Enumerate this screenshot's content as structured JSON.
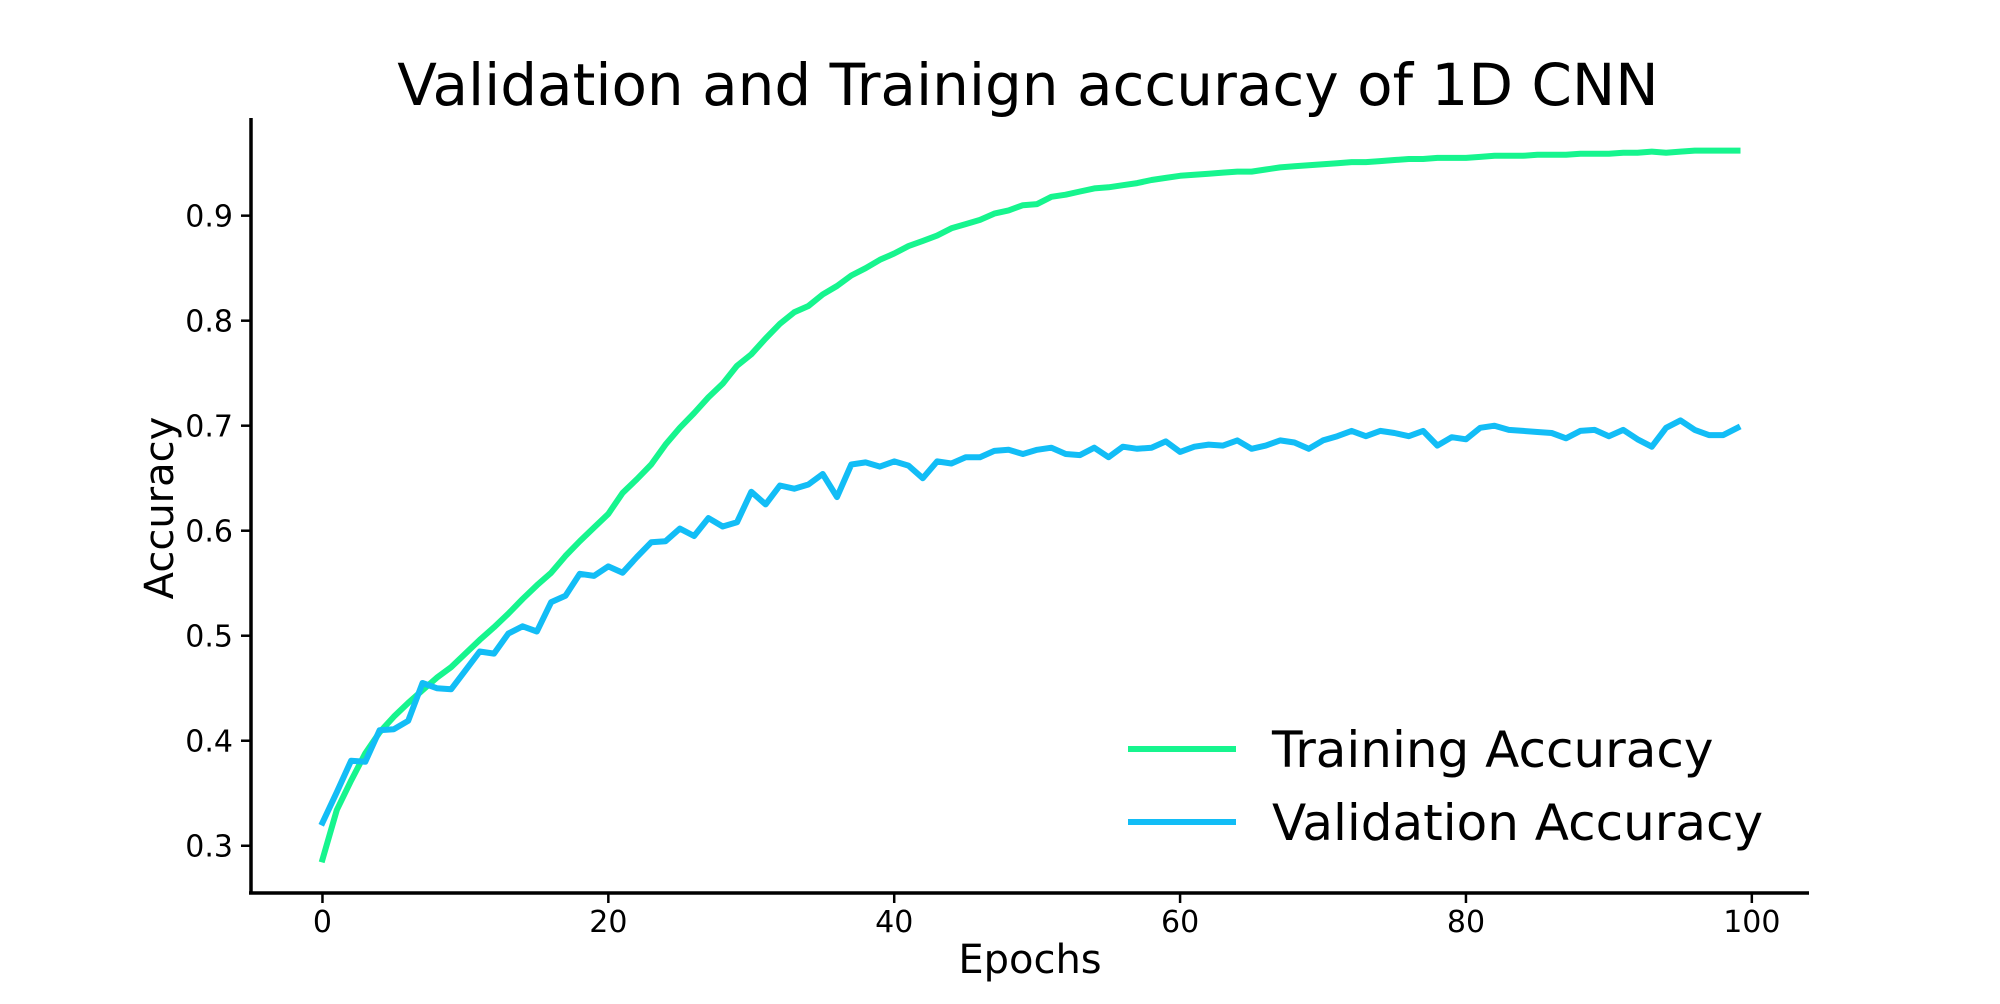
{
  "chart_data": {
    "type": "line",
    "title": "Validation and Trainign accuracy of 1D CNN",
    "xlabel": "Epochs",
    "ylabel": "Accuracy",
    "xlim": [
      -5,
      104
    ],
    "ylim": [
      0.255,
      0.993
    ],
    "xticks": [
      0,
      20,
      40,
      60,
      80,
      100
    ],
    "yticks": [
      0.3,
      0.4,
      0.5,
      0.6,
      0.7,
      0.8,
      0.9
    ],
    "grid": false,
    "legend_position": "lower-right",
    "x": [
      0,
      1,
      2,
      3,
      4,
      5,
      6,
      7,
      8,
      9,
      10,
      11,
      12,
      13,
      14,
      15,
      16,
      17,
      18,
      19,
      20,
      21,
      22,
      23,
      24,
      25,
      26,
      27,
      28,
      29,
      30,
      31,
      32,
      33,
      34,
      35,
      36,
      37,
      38,
      39,
      40,
      41,
      42,
      43,
      44,
      45,
      46,
      47,
      48,
      49,
      50,
      51,
      52,
      53,
      54,
      55,
      56,
      57,
      58,
      59,
      60,
      61,
      62,
      63,
      64,
      65,
      66,
      67,
      68,
      69,
      70,
      71,
      72,
      73,
      74,
      75,
      76,
      77,
      78,
      79,
      80,
      81,
      82,
      83,
      84,
      85,
      86,
      87,
      88,
      89,
      90,
      91,
      92,
      93,
      94,
      95,
      96,
      97,
      98,
      99
    ],
    "series": [
      {
        "name": "Training Accuracy",
        "color": "#16f58e",
        "values": [
          0.287,
          0.334,
          0.362,
          0.388,
          0.408,
          0.423,
          0.436,
          0.448,
          0.46,
          0.47,
          0.483,
          0.496,
          0.508,
          0.521,
          0.535,
          0.548,
          0.56,
          0.576,
          0.59,
          0.603,
          0.616,
          0.636,
          0.649,
          0.663,
          0.682,
          0.698,
          0.712,
          0.727,
          0.74,
          0.757,
          0.768,
          0.783,
          0.797,
          0.808,
          0.814,
          0.825,
          0.833,
          0.843,
          0.85,
          0.858,
          0.864,
          0.871,
          0.876,
          0.881,
          0.888,
          0.892,
          0.896,
          0.902,
          0.905,
          0.91,
          0.911,
          0.918,
          0.92,
          0.923,
          0.926,
          0.927,
          0.929,
          0.931,
          0.934,
          0.936,
          0.938,
          0.939,
          0.94,
          0.941,
          0.942,
          0.942,
          0.944,
          0.946,
          0.947,
          0.948,
          0.949,
          0.95,
          0.951,
          0.951,
          0.952,
          0.953,
          0.954,
          0.954,
          0.955,
          0.955,
          0.955,
          0.956,
          0.957,
          0.957,
          0.957,
          0.958,
          0.958,
          0.958,
          0.959,
          0.959,
          0.959,
          0.96,
          0.96,
          0.961,
          0.96,
          0.961,
          0.962,
          0.962,
          0.962,
          0.962
        ]
      },
      {
        "name": "Validation Accuracy",
        "color": "#12bdf6",
        "values": [
          0.322,
          0.351,
          0.381,
          0.38,
          0.41,
          0.411,
          0.419,
          0.455,
          0.45,
          0.449,
          0.467,
          0.485,
          0.483,
          0.502,
          0.509,
          0.504,
          0.532,
          0.538,
          0.559,
          0.557,
          0.566,
          0.56,
          0.575,
          0.589,
          0.59,
          0.602,
          0.595,
          0.612,
          0.604,
          0.608,
          0.637,
          0.625,
          0.643,
          0.64,
          0.644,
          0.654,
          0.632,
          0.663,
          0.665,
          0.661,
          0.666,
          0.662,
          0.65,
          0.666,
          0.664,
          0.67,
          0.67,
          0.676,
          0.677,
          0.673,
          0.677,
          0.679,
          0.673,
          0.672,
          0.679,
          0.67,
          0.68,
          0.678,
          0.679,
          0.685,
          0.675,
          0.68,
          0.682,
          0.681,
          0.686,
          0.678,
          0.681,
          0.686,
          0.684,
          0.678,
          0.686,
          0.69,
          0.695,
          0.69,
          0.695,
          0.693,
          0.69,
          0.695,
          0.681,
          0.689,
          0.687,
          0.698,
          0.7,
          0.696,
          0.695,
          0.694,
          0.693,
          0.688,
          0.695,
          0.696,
          0.69,
          0.696,
          0.687,
          0.68,
          0.698,
          0.705,
          0.696,
          0.691,
          0.691,
          0.698
        ]
      }
    ]
  }
}
